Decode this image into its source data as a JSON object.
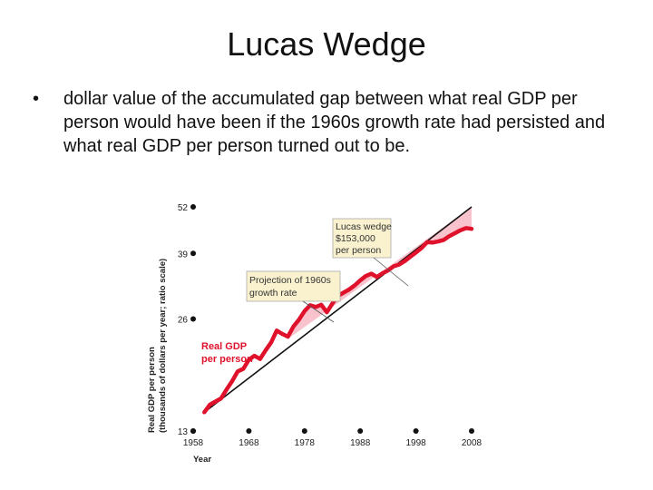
{
  "slide": {
    "title": "Lucas Wedge",
    "bullet": "dollar value of the accumulated gap between what real GDP per person would have been if the 1960s growth rate had persisted and what real GDP per person turned out to be."
  },
  "chart_data": {
    "type": "line",
    "scale": "log (ratio scale)",
    "xlabel": "Year",
    "ylabel_line1": "Real GDP per person",
    "ylabel_line2": "(thousands of dollars per year; ratio scale)",
    "x_ticks": [
      "1958",
      "1968",
      "1978",
      "1988",
      "1998",
      "2008"
    ],
    "y_ticks": [
      "13",
      "26",
      "39",
      "52"
    ],
    "xlim": [
      1958,
      2008
    ],
    "ylim": [
      13,
      52
    ],
    "series": [
      {
        "name": "Real GDP per person",
        "color": "#e0112b",
        "x": [
          1960,
          1961,
          1962,
          1963,
          1964,
          1965,
          1966,
          1967,
          1968,
          1969,
          1970,
          1971,
          1972,
          1973,
          1974,
          1975,
          1976,
          1977,
          1978,
          1979,
          1980,
          1981,
          1982,
          1983,
          1984,
          1985,
          1986,
          1987,
          1988,
          1989,
          1990,
          1991,
          1992,
          1993,
          1994,
          1995,
          1996,
          1997,
          1998,
          1999,
          2000,
          2001,
          2002,
          2003,
          2004,
          2005,
          2006,
          2007,
          2008
        ],
        "y": [
          14.6,
          15.3,
          15.6,
          15.9,
          16.8,
          17.7,
          18.8,
          19.1,
          20.2,
          20.7,
          20.3,
          21.4,
          22.5,
          24.2,
          23.7,
          23.3,
          24.8,
          25.9,
          27.3,
          28.3,
          28.0,
          28.4,
          27.1,
          28.6,
          30.0,
          30.6,
          31.2,
          32.0,
          33.0,
          33.9,
          34.4,
          33.7,
          34.5,
          35.1,
          36.0,
          36.4,
          37.2,
          38.2,
          39.2,
          40.3,
          41.8,
          41.7,
          42.0,
          42.4,
          43.4,
          44.2,
          45.0,
          45.6,
          45.4
        ]
      },
      {
        "name": "Projection of 1960s growth rate",
        "color": "#111111",
        "x": [
          1960,
          2008
        ],
        "y": [
          14.6,
          62.2
        ]
      }
    ],
    "annotations": [
      {
        "text": [
          "Lucas wedge",
          "$153,000",
          "per person"
        ]
      },
      {
        "text": [
          "Projection of 1960s",
          "growth rate"
        ]
      },
      {
        "text": [
          "Real GDP",
          "per person"
        ]
      }
    ],
    "wedge_fill": "#f8c3cc"
  }
}
